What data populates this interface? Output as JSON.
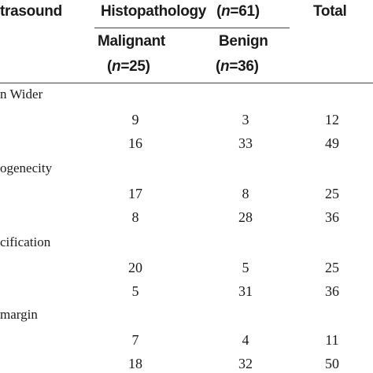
{
  "header": {
    "col1": "trasound",
    "histo_title": "Histopathology",
    "histo_n_pre": "(",
    "histo_n_var": "n",
    "histo_n_val": "=61)",
    "total": "Total",
    "malignant": "Malignant",
    "malignant_n_pre": "(",
    "malignant_n_var": "n",
    "malignant_n_val": "=25)",
    "benign": "Benign",
    "benign_n_pre": "(",
    "benign_n_var": "n",
    "benign_n_val": "=36)"
  },
  "groups": [
    {
      "label": "n Wider",
      "rows": [
        [
          "9",
          "3",
          "12"
        ],
        [
          "16",
          "33",
          "49"
        ]
      ]
    },
    {
      "label": "ogenecity",
      "rows": [
        [
          "17",
          "8",
          "25"
        ],
        [
          "8",
          "28",
          "36"
        ]
      ]
    },
    {
      "label": "cification",
      "rows": [
        [
          "20",
          "5",
          "25"
        ],
        [
          "5",
          "31",
          "36"
        ]
      ]
    },
    {
      "label": "margin",
      "rows": [
        [
          "7",
          "4",
          "11"
        ],
        [
          "18",
          "32",
          "50"
        ]
      ]
    }
  ]
}
